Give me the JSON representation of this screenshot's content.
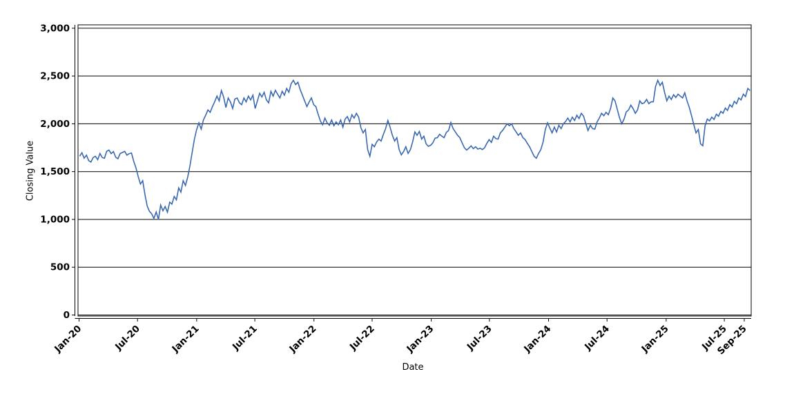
{
  "chart_data": {
    "type": "line",
    "title": "",
    "xlabel": "Date",
    "ylabel": "Closing Value",
    "ylim": [
      0,
      3000
    ],
    "y_tick_values": [
      0,
      500,
      1000,
      1500,
      2000,
      2500,
      3000
    ],
    "y_tick_labels": [
      "0",
      "500",
      "1,000",
      "1,500",
      "2,000",
      "2,500",
      "3,000"
    ],
    "x_tick_labels": [
      "Jan-20",
      "Jul-20",
      "Jan-21",
      "Jul-21",
      "Jan-22",
      "Jul-22",
      "Jan-23",
      "Jul-23",
      "Jan-24",
      "Jul-24",
      "Jan-25",
      "Jul-25",
      "Sep-25"
    ],
    "grid": "horizontal-solid-black",
    "legend": "none",
    "line_color": "#3a68b0",
    "series": [
      {
        "name": "Closing Value",
        "start_date": "2020-01-03",
        "interval_days": 7,
        "values": [
          1662,
          1698,
          1640,
          1672,
          1615,
          1600,
          1648,
          1660,
          1625,
          1690,
          1648,
          1640,
          1712,
          1725,
          1688,
          1710,
          1650,
          1635,
          1690,
          1700,
          1712,
          1672,
          1688,
          1695,
          1610,
          1540,
          1450,
          1370,
          1405,
          1262,
          1140,
          1085,
          1058,
          1010,
          1078,
          1000,
          1150,
          1090,
          1135,
          1075,
          1180,
          1160,
          1240,
          1205,
          1330,
          1285,
          1405,
          1355,
          1440,
          1560,
          1700,
          1840,
          1940,
          2010,
          1945,
          2040,
          2090,
          2145,
          2120,
          2180,
          2230,
          2290,
          2240,
          2348,
          2280,
          2170,
          2270,
          2230,
          2160,
          2260,
          2270,
          2220,
          2200,
          2270,
          2230,
          2290,
          2250,
          2300,
          2160,
          2240,
          2320,
          2280,
          2330,
          2250,
          2220,
          2340,
          2290,
          2350,
          2310,
          2270,
          2340,
          2300,
          2370,
          2330,
          2420,
          2455,
          2410,
          2435,
          2360,
          2300,
          2240,
          2180,
          2230,
          2270,
          2200,
          2180,
          2100,
          2030,
          1990,
          2060,
          2010,
          1985,
          2040,
          1980,
          2020,
          1990,
          2040,
          1965,
          2050,
          2075,
          2020,
          2095,
          2060,
          2110,
          2070,
          1960,
          1905,
          1940,
          1730,
          1660,
          1785,
          1760,
          1810,
          1840,
          1820,
          1890,
          1950,
          2035,
          1965,
          1880,
          1820,
          1855,
          1730,
          1675,
          1710,
          1760,
          1690,
          1730,
          1810,
          1915,
          1880,
          1920,
          1840,
          1870,
          1790,
          1765,
          1775,
          1800,
          1850,
          1855,
          1890,
          1870,
          1855,
          1910,
          1930,
          2014,
          1950,
          1915,
          1880,
          1855,
          1800,
          1750,
          1725,
          1745,
          1770,
          1740,
          1760,
          1735,
          1745,
          1730,
          1750,
          1795,
          1835,
          1805,
          1870,
          1845,
          1840,
          1905,
          1930,
          1965,
          2000,
          1980,
          2000,
          1950,
          1915,
          1880,
          1905,
          1855,
          1835,
          1795,
          1760,
          1710,
          1660,
          1640,
          1690,
          1730,
          1810,
          1940,
          2010,
          1955,
          1905,
          1965,
          1915,
          1985,
          1950,
          2000,
          2025,
          2060,
          2020,
          2070,
          2035,
          2090,
          2055,
          2110,
          2080,
          2000,
          1930,
          1985,
          1950,
          1945,
          2020,
          2060,
          2110,
          2085,
          2120,
          2095,
          2160,
          2270,
          2240,
          2150,
          2060,
          2000,
          2050,
          2125,
          2145,
          2195,
          2160,
          2110,
          2145,
          2240,
          2210,
          2220,
          2255,
          2210,
          2230,
          2230,
          2390,
          2455,
          2400,
          2435,
          2330,
          2240,
          2290,
          2255,
          2305,
          2275,
          2310,
          2290,
          2270,
          2325,
          2240,
          2170,
          2085,
          1990,
          1905,
          1940,
          1790,
          1770,
          1980,
          2050,
          2030,
          2070,
          2045,
          2100,
          2080,
          2130,
          2110,
          2165,
          2140,
          2200,
          2175,
          2235,
          2210,
          2270,
          2250,
          2310,
          2285,
          2370,
          2348
        ]
      }
    ]
  }
}
